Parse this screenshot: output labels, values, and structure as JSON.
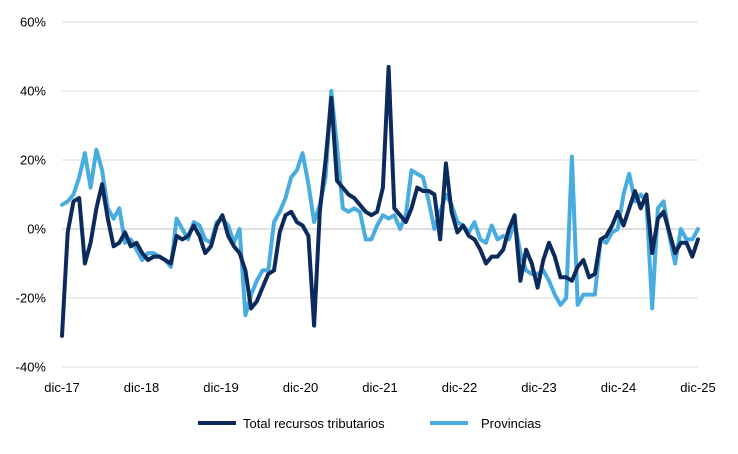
{
  "chart_data": {
    "type": "line",
    "title": "",
    "xlabel": "",
    "ylabel": "",
    "ylim": [
      -0.4,
      0.6
    ],
    "y_ticks": [
      -0.4,
      -0.2,
      0.0,
      0.2,
      0.4,
      0.6
    ],
    "y_tick_labels": [
      "-40%",
      "-20%",
      "0%",
      "20%",
      "40%",
      "60%"
    ],
    "x_tick_labels": [
      "dic-17",
      "dic-18",
      "dic-19",
      "dic-20",
      "dic-21",
      "dic-22",
      "dic-23",
      "dic-24",
      "dic-25"
    ],
    "x_start": "dic-17",
    "x_end": "dic-25",
    "grid": "horizontal",
    "legend_position": "bottom",
    "series": [
      {
        "name": "Total recursos tributarios",
        "color": "#0d2a5c",
        "values": [
          -0.31,
          -0.01,
          0.08,
          0.09,
          -0.1,
          -0.04,
          0.06,
          0.13,
          0.03,
          -0.05,
          -0.04,
          -0.01,
          -0.05,
          -0.04,
          -0.07,
          -0.09,
          -0.08,
          -0.08,
          -0.09,
          -0.1,
          -0.02,
          -0.03,
          -0.02,
          0.01,
          -0.02,
          -0.07,
          -0.05,
          0.01,
          0.04,
          -0.02,
          -0.05,
          -0.07,
          -0.12,
          -0.23,
          -0.21,
          -0.17,
          -0.13,
          -0.12,
          -0.01,
          0.04,
          0.05,
          0.02,
          0.01,
          -0.02,
          -0.28,
          0.05,
          0.2,
          0.38,
          0.14,
          0.12,
          0.1,
          0.09,
          0.07,
          0.05,
          0.04,
          0.05,
          0.12,
          0.47,
          0.06,
          0.04,
          0.02,
          0.06,
          0.12,
          0.11,
          0.11,
          0.1,
          -0.03,
          0.19,
          0.05,
          -0.01,
          0.01,
          -0.02,
          -0.03,
          -0.06,
          -0.1,
          -0.08,
          -0.08,
          -0.06,
          0.0,
          0.04,
          -0.15,
          -0.06,
          -0.1,
          -0.17,
          -0.09,
          -0.04,
          -0.08,
          -0.14,
          -0.14,
          -0.15,
          -0.11,
          -0.09,
          -0.14,
          -0.13,
          -0.03,
          -0.02,
          0.01,
          0.05,
          0.01,
          0.06,
          0.11,
          0.06,
          0.1,
          -0.07,
          0.03,
          0.05,
          -0.01,
          -0.07,
          -0.04,
          -0.04,
          -0.08,
          -0.03
        ]
      },
      {
        "name": "Provincias",
        "color": "#49ace0",
        "values": [
          0.07,
          0.08,
          0.1,
          0.15,
          0.22,
          0.12,
          0.23,
          0.17,
          0.06,
          0.03,
          0.06,
          -0.04,
          -0.03,
          -0.06,
          -0.09,
          -0.07,
          -0.07,
          -0.08,
          -0.09,
          -0.11,
          0.03,
          0.0,
          -0.03,
          0.02,
          0.01,
          -0.03,
          -0.04,
          0.02,
          0.03,
          0.01,
          -0.04,
          0.0,
          -0.25,
          -0.19,
          -0.15,
          -0.12,
          -0.12,
          0.02,
          0.05,
          0.09,
          0.15,
          0.17,
          0.22,
          0.13,
          0.02,
          0.07,
          0.15,
          0.4,
          0.24,
          0.06,
          0.05,
          0.06,
          0.05,
          -0.03,
          -0.03,
          0.01,
          0.04,
          0.03,
          0.04,
          0.0,
          0.04,
          0.17,
          0.16,
          0.15,
          0.08,
          0.0,
          0.05,
          0.1,
          0.07,
          0.02,
          0.01,
          -0.01,
          0.02,
          -0.03,
          -0.04,
          0.01,
          -0.03,
          -0.02,
          -0.03,
          0.02,
          -0.07,
          -0.12,
          -0.13,
          -0.13,
          -0.12,
          -0.15,
          -0.19,
          -0.22,
          -0.2,
          0.21,
          -0.22,
          -0.19,
          -0.19,
          -0.19,
          -0.03,
          -0.04,
          -0.01,
          0.0,
          0.1,
          0.16,
          0.08,
          0.1,
          0.08,
          -0.23,
          0.06,
          0.08,
          -0.02,
          -0.1,
          0.0,
          -0.03,
          -0.03,
          0.0
        ]
      }
    ]
  }
}
